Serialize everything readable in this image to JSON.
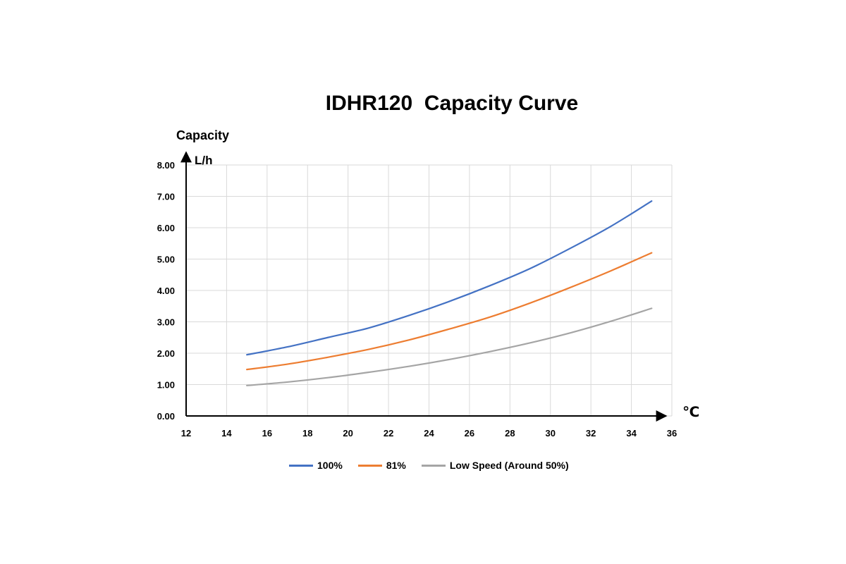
{
  "chart_data": {
    "type": "line",
    "title": "IDHR120  Capacity Curve",
    "ylabel": "Capacity",
    "yunit": "L/h",
    "xunit": "℃",
    "xlim": [
      12,
      36
    ],
    "ylim": [
      0,
      8
    ],
    "x_ticks": [
      "12",
      "14",
      "16",
      "18",
      "20",
      "22",
      "24",
      "26",
      "28",
      "30",
      "32",
      "34",
      "36"
    ],
    "y_ticks": [
      "0.00",
      "1.00",
      "2.00",
      "3.00",
      "4.00",
      "5.00",
      "6.00",
      "7.00",
      "8.00"
    ],
    "grid": true,
    "legend_position": "bottom",
    "x": [
      15,
      17,
      19,
      21,
      23,
      25,
      27,
      29,
      31,
      33,
      35
    ],
    "series": [
      {
        "name": "100%",
        "color": "#4472C4",
        "values": [
          1.95,
          2.2,
          2.5,
          2.8,
          3.2,
          3.65,
          4.15,
          4.7,
          5.35,
          6.05,
          6.85
        ]
      },
      {
        "name": "81%",
        "color": "#ED7D31",
        "values": [
          1.48,
          1.65,
          1.87,
          2.12,
          2.42,
          2.77,
          3.15,
          3.6,
          4.1,
          4.63,
          5.2
        ]
      },
      {
        "name": "Low Speed (Around 50%)",
        "color": "#A5A5A5",
        "values": [
          0.97,
          1.08,
          1.22,
          1.39,
          1.58,
          1.8,
          2.05,
          2.33,
          2.65,
          3.02,
          3.43
        ]
      }
    ]
  }
}
